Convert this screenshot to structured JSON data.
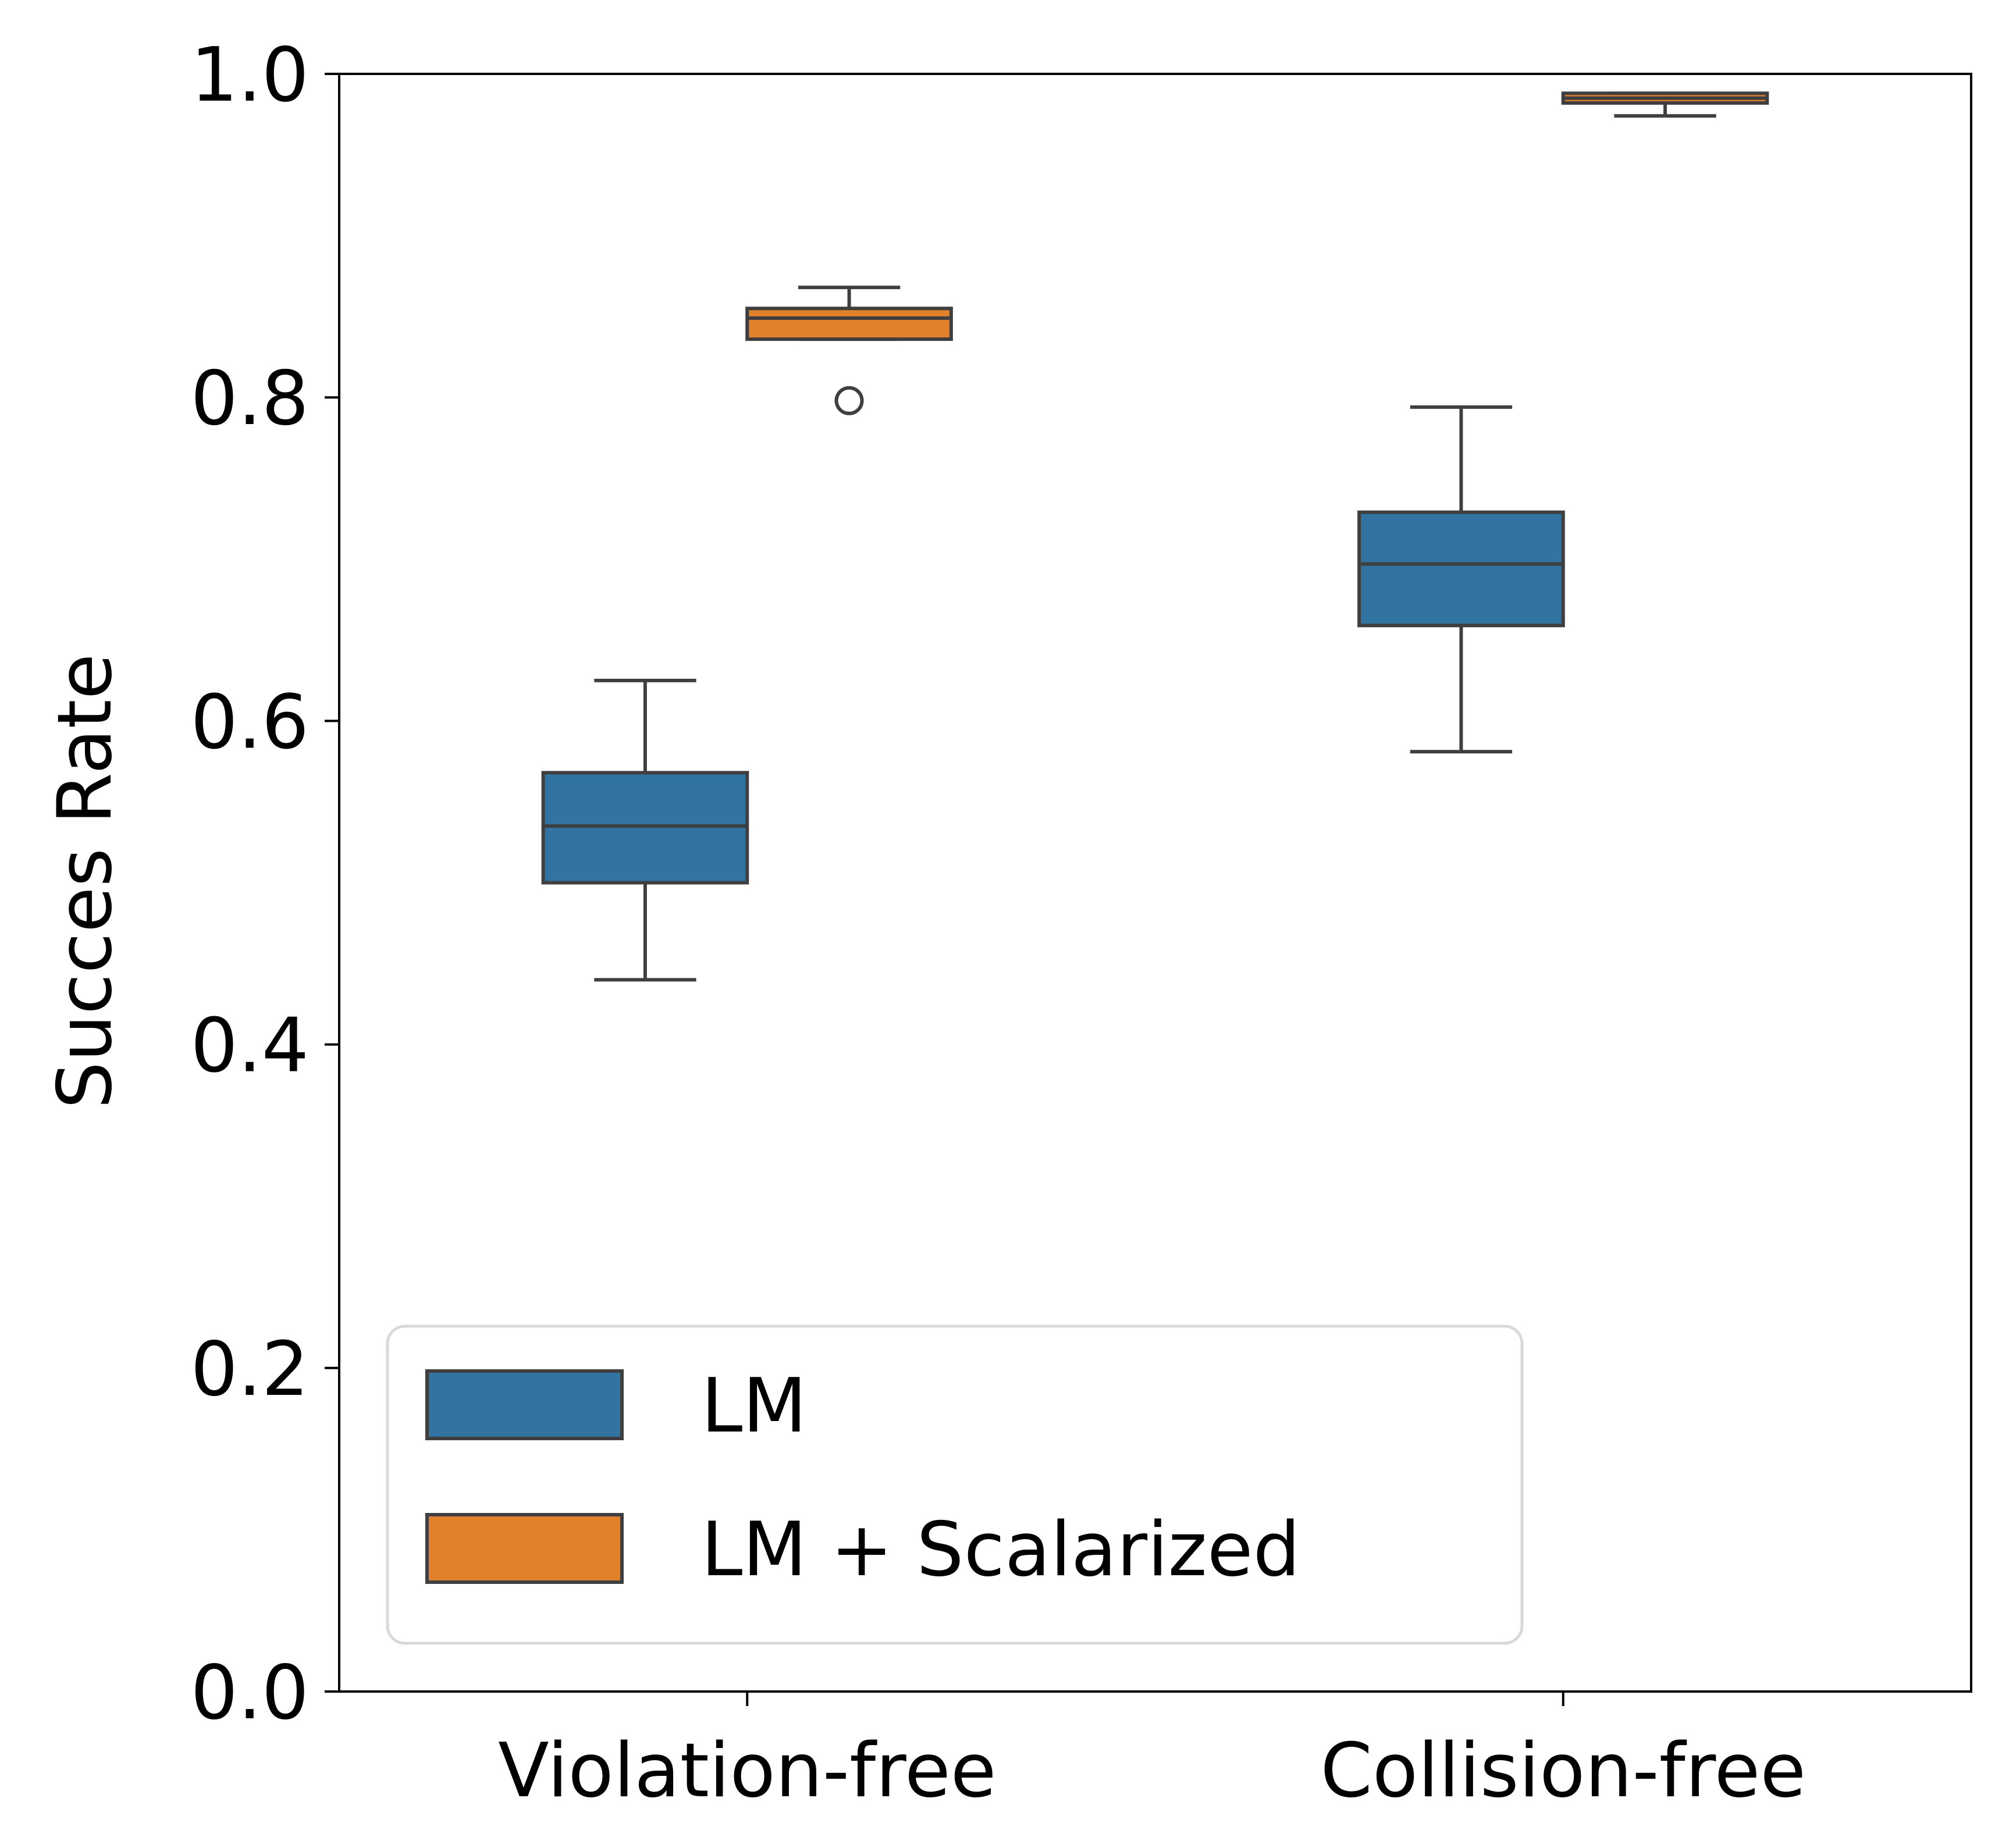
{
  "chart_data": {
    "type": "box",
    "ylabel": "Succes Rate",
    "xlabel": "",
    "ylim": [
      0.0,
      1.0
    ],
    "yticks": [
      "0.0",
      "0.2",
      "0.4",
      "0.6",
      "0.8",
      "1.0"
    ],
    "categories": [
      "Violation-free",
      "Collision-free"
    ],
    "grid": false,
    "legend_position": "lower-left",
    "series": [
      {
        "name": "LM",
        "color": "#3274a1",
        "boxes": [
          {
            "category": "Violation-free",
            "whislo": 0.44,
            "q1": 0.5,
            "median": 0.535,
            "q3": 0.568,
            "whishi": 0.625,
            "fliers": []
          },
          {
            "category": "Collision-free",
            "whislo": 0.581,
            "q1": 0.659,
            "median": 0.697,
            "q3": 0.729,
            "whishi": 0.794,
            "fliers": []
          }
        ]
      },
      {
        "name": "LM + Scalarized",
        "color": "#e1812c",
        "boxes": [
          {
            "category": "Violation-free",
            "whislo": 0.836,
            "q1": 0.836,
            "median": 0.849,
            "q3": 0.855,
            "whishi": 0.868,
            "fliers": [
              0.798
            ]
          },
          {
            "category": "Collision-free",
            "whislo": 0.974,
            "q1": 0.982,
            "median": 0.985,
            "q3": 0.988,
            "whishi": 0.988,
            "fliers": []
          }
        ]
      }
    ]
  }
}
